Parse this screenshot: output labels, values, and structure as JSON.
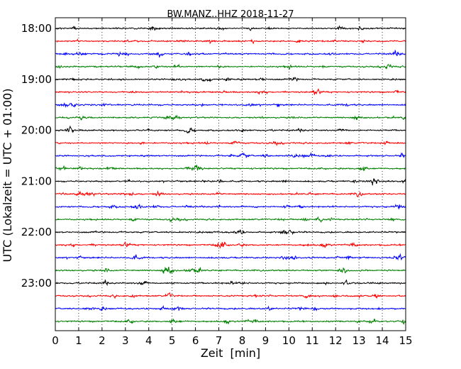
{
  "chart_data": {
    "type": "line",
    "title": "BW.MANZ..HHZ 2018-11-27",
    "xlabel": "Zeit  [min]",
    "ylabel": "UTC (Lokalzeit = UTC + 01:00)",
    "xlim": [
      0,
      15
    ],
    "x_ticks": [
      "0",
      "1",
      "2",
      "3",
      "4",
      "5",
      "6",
      "7",
      "8",
      "9",
      "10",
      "11",
      "12",
      "13",
      "14",
      "15"
    ],
    "y_tick_labels": [
      "18:00",
      "19:00",
      "20:00",
      "21:00",
      "22:00",
      "23:00"
    ],
    "trace_start_times": [
      "18:00",
      "18:15",
      "18:30",
      "18:45",
      "19:00",
      "19:15",
      "19:30",
      "19:45",
      "20:00",
      "20:15",
      "20:30",
      "20:45",
      "21:00",
      "21:15",
      "21:30",
      "21:45",
      "22:00",
      "22:15",
      "22:30",
      "22:45",
      "23:00",
      "23:15",
      "23:30",
      "23:45"
    ],
    "trace_colors": [
      "#000000",
      "#ff0000",
      "#0000ff",
      "#008000"
    ],
    "grid": {
      "x": "dotted",
      "y": "none"
    }
  }
}
